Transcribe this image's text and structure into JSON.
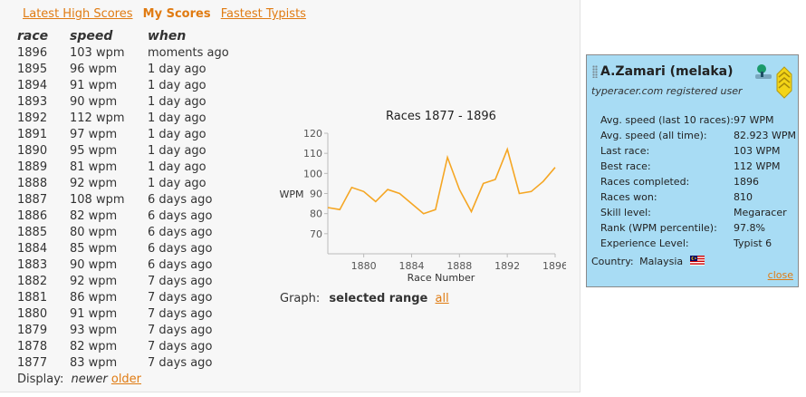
{
  "tabs": [
    {
      "label": "Latest High Scores",
      "active": false
    },
    {
      "label": "My Scores",
      "active": true
    },
    {
      "label": "Fastest Typists",
      "active": false
    }
  ],
  "table": {
    "headers": [
      "race",
      "speed",
      "when"
    ],
    "rows": [
      [
        "1896",
        "103 wpm",
        "moments ago"
      ],
      [
        "1895",
        "96 wpm",
        "1 day ago"
      ],
      [
        "1894",
        "91 wpm",
        "1 day ago"
      ],
      [
        "1893",
        "90 wpm",
        "1 day ago"
      ],
      [
        "1892",
        "112 wpm",
        "1 day ago"
      ],
      [
        "1891",
        "97 wpm",
        "1 day ago"
      ],
      [
        "1890",
        "95 wpm",
        "1 day ago"
      ],
      [
        "1889",
        "81 wpm",
        "1 day ago"
      ],
      [
        "1888",
        "92 wpm",
        "1 day ago"
      ],
      [
        "1887",
        "108 wpm",
        "6 days ago"
      ],
      [
        "1886",
        "82 wpm",
        "6 days ago"
      ],
      [
        "1885",
        "80 wpm",
        "6 days ago"
      ],
      [
        "1884",
        "85 wpm",
        "6 days ago"
      ],
      [
        "1883",
        "90 wpm",
        "6 days ago"
      ],
      [
        "1882",
        "92 wpm",
        "7 days ago"
      ],
      [
        "1881",
        "86 wpm",
        "7 days ago"
      ],
      [
        "1880",
        "91 wpm",
        "7 days ago"
      ],
      [
        "1879",
        "93 wpm",
        "7 days ago"
      ],
      [
        "1878",
        "82 wpm",
        "7 days ago"
      ],
      [
        "1877",
        "83 wpm",
        "7 days ago"
      ]
    ]
  },
  "display": {
    "label": "Display:",
    "newer": "newer",
    "older": "older"
  },
  "graph_controls": {
    "label": "Graph:",
    "selected": "selected range",
    "all": "all"
  },
  "chart_data": {
    "type": "line",
    "title": "Races 1877 - 1896",
    "xlabel": "Race Number",
    "ylabel": "WPM",
    "x": [
      1877,
      1878,
      1879,
      1880,
      1881,
      1882,
      1883,
      1884,
      1885,
      1886,
      1887,
      1888,
      1889,
      1890,
      1891,
      1892,
      1893,
      1894,
      1895,
      1896
    ],
    "y": [
      83,
      82,
      93,
      91,
      86,
      92,
      90,
      85,
      80,
      82,
      108,
      92,
      81,
      95,
      97,
      112,
      90,
      91,
      96,
      103
    ],
    "xlim": [
      1877,
      1896
    ],
    "ylim": [
      60,
      120
    ],
    "xticks": [
      1880,
      1884,
      1888,
      1892,
      1896
    ],
    "yticks": [
      70,
      80,
      90,
      100,
      110,
      120
    ],
    "line_color": "#f5a623",
    "grid": false,
    "legend": "none"
  },
  "user": {
    "name": "A.Zamari (melaka)",
    "subtitle": "typeracer.com registered user",
    "stats": [
      {
        "label": "Avg. speed (last 10 races):",
        "value": "97 WPM"
      },
      {
        "label": "Avg. speed (all time):",
        "value": "82.923 WPM"
      },
      {
        "label": "Last race:",
        "value": "103 WPM"
      },
      {
        "label": "Best race:",
        "value": "112 WPM"
      },
      {
        "label": "Races completed:",
        "value": "1896"
      },
      {
        "label": "Races won:",
        "value": "810"
      },
      {
        "label": "Skill level:",
        "value": "Megaracer"
      },
      {
        "label": "Rank (WPM percentile):",
        "value": "97.8%"
      },
      {
        "label": "Experience Level:",
        "value": "Typist 6"
      }
    ],
    "country_label": "Country:",
    "country": "Malaysia",
    "close": "close",
    "panel_bg": "#a8dcf4",
    "icons": [
      "pin-icon",
      "rank-badge-icon",
      "malaysia-flag-icon"
    ]
  }
}
